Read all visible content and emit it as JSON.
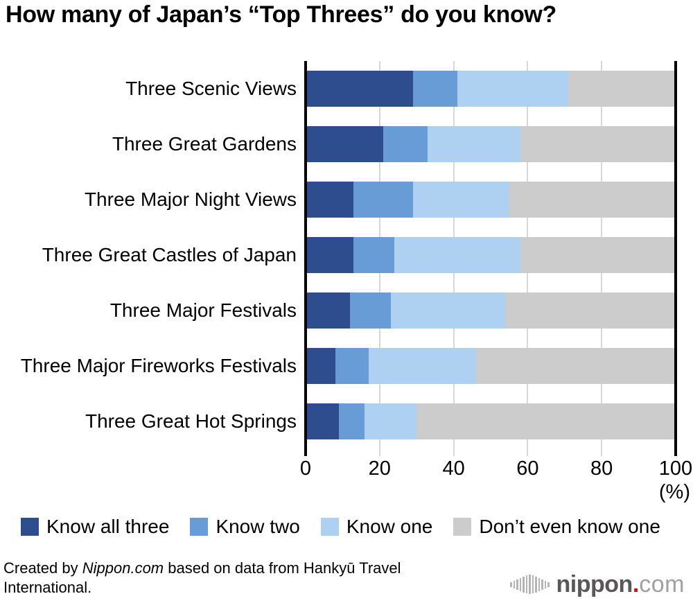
{
  "title": "How many of Japan’s “Top Threes” do you know?",
  "chart_data": {
    "type": "bar",
    "stacked": true,
    "orientation": "horizontal",
    "categories": [
      "Three Scenic Views",
      "Three Great Gardens",
      "Three Major Night Views",
      "Three Great Castles of Japan",
      "Three Major Festivals",
      "Three Major Fireworks Festivals",
      "Three Great Hot Springs"
    ],
    "series": [
      {
        "name": "Know all three",
        "color": "#2e4d8e",
        "values": [
          29,
          21,
          13,
          13,
          12,
          8,
          9
        ]
      },
      {
        "name": "Know two",
        "color": "#689cd7",
        "values": [
          12,
          12,
          16,
          11,
          11,
          9,
          7
        ]
      },
      {
        "name": "Know one",
        "color": "#aed0f1",
        "values": [
          30,
          25,
          26,
          34,
          31,
          29,
          14
        ]
      },
      {
        "name": "Don’t even know one",
        "color": "#cccccc",
        "values": [
          29,
          42,
          45,
          42,
          46,
          54,
          70
        ]
      }
    ],
    "x_ticks": [
      0,
      20,
      40,
      60,
      80,
      100
    ],
    "x_unit": "(%)",
    "xlim": [
      0,
      100
    ],
    "grid": true,
    "legend_position": "bottom",
    "axis_color": "#000000",
    "gridline_color": "#d8d8d8"
  },
  "footer": {
    "prefix": "Created by ",
    "source_italic": "Nippon.com",
    "suffix": " based on data from Hankyū Travel International."
  },
  "logo": {
    "icon": "soundwave-icon",
    "brand": "nippon",
    "dot": ".",
    "tld": "com",
    "brand_color": "#595757",
    "dot_color": "#e60012",
    "tld_color": "#9fa0a0",
    "icon_color": "#b4b4b5"
  }
}
